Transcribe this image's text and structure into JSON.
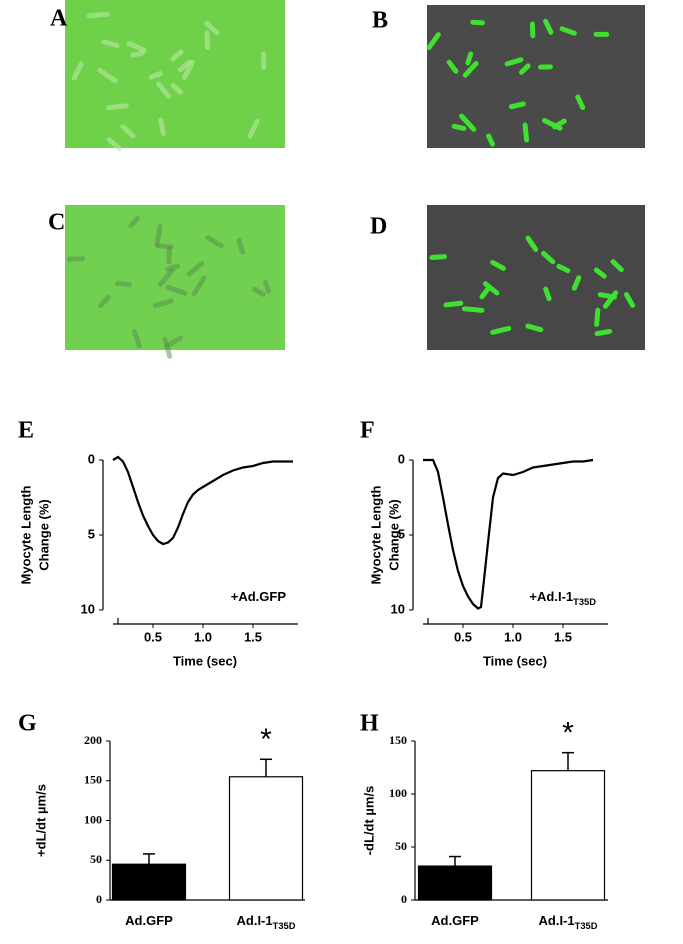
{
  "panel_labels": [
    "A",
    "B",
    "C",
    "D",
    "E",
    "F",
    "G",
    "H"
  ],
  "chart_data": [
    {
      "type": "line",
      "ylabel": [
        "Myocyte Length",
        "Change (%)"
      ],
      "xlabel": "Time (sec)",
      "annotation": "+Ad.GFP",
      "x": [
        0.1,
        0.15,
        0.2,
        0.25,
        0.3,
        0.35,
        0.4,
        0.45,
        0.5,
        0.55,
        0.6,
        0.65,
        0.7,
        0.75,
        0.8,
        0.85,
        0.9,
        0.95,
        1.0,
        1.1,
        1.2,
        1.3,
        1.4,
        1.5,
        1.6,
        1.7,
        1.8,
        1.9
      ],
      "values": [
        0,
        -0.2,
        0.1,
        0.8,
        1.8,
        2.8,
        3.7,
        4.4,
        5.0,
        5.4,
        5.6,
        5.5,
        5.2,
        4.5,
        3.6,
        2.8,
        2.3,
        2.0,
        1.8,
        1.4,
        1.0,
        0.7,
        0.5,
        0.4,
        0.2,
        0.1,
        0.1,
        0.1
      ],
      "color": "#000000",
      "xlim": [
        0.1,
        1.95
      ],
      "ylim": [
        0,
        10
      ],
      "y_inverted": true,
      "xticks": [
        0.5,
        {
          "value": 1,
          "label": "1.0"
        },
        1.5
      ],
      "yticks": [
        0,
        5,
        10
      ]
    },
    {
      "type": "line",
      "ylabel": [
        "Myocyte Length",
        "Change (%)"
      ],
      "xlabel": "Time (sec)",
      "annotation": "+Ad.I-1",
      "annotation_subscript": "T35D",
      "x": [
        0.1,
        0.15,
        0.2,
        0.25,
        0.3,
        0.35,
        0.4,
        0.45,
        0.5,
        0.55,
        0.6,
        0.65,
        0.68,
        0.7,
        0.75,
        0.8,
        0.85,
        0.9,
        1.0,
        1.1,
        1.2,
        1.3,
        1.4,
        1.5,
        1.6,
        1.7,
        1.8
      ],
      "values": [
        0,
        0,
        0,
        0.8,
        2.5,
        4.3,
        6.0,
        7.4,
        8.4,
        9.1,
        9.6,
        9.9,
        9.8,
        8.6,
        5.5,
        2.5,
        1.2,
        0.9,
        1.0,
        0.8,
        0.5,
        0.4,
        0.3,
        0.2,
        0.1,
        0.1,
        0
      ],
      "color": "#000000",
      "xlim": [
        0.1,
        1.95
      ],
      "ylim": [
        0,
        10
      ],
      "y_inverted": true,
      "xticks": [
        0.5,
        {
          "value": 1,
          "label": "1.0"
        },
        1.5
      ],
      "yticks": [
        0,
        5,
        10
      ]
    },
    {
      "type": "bar",
      "ylabel": "+dL/dt µm/s",
      "categories": [
        "Ad.GFP",
        "Ad.I-1"
      ],
      "category_subscripts": [
        null,
        "T35D"
      ],
      "values": [
        45,
        155
      ],
      "errors": [
        13,
        22
      ],
      "colors": [
        "#000000",
        "#ffffff"
      ],
      "significance_labels": [
        null,
        "*"
      ],
      "ylim": [
        0,
        200
      ],
      "yticks": [
        0,
        50,
        100,
        150,
        200
      ]
    },
    {
      "type": "bar",
      "ylabel": "-dL/dt µm/s",
      "categories": [
        "Ad.GFP",
        "Ad.I-1"
      ],
      "category_subscripts": [
        null,
        "T35D"
      ],
      "values": [
        32,
        122
      ],
      "errors": [
        9,
        17
      ],
      "colors": [
        "#000000",
        "#ffffff"
      ],
      "significance_labels": [
        null,
        "*"
      ],
      "ylim": [
        0,
        150
      ],
      "yticks": [
        0,
        50,
        100,
        150
      ]
    }
  ]
}
